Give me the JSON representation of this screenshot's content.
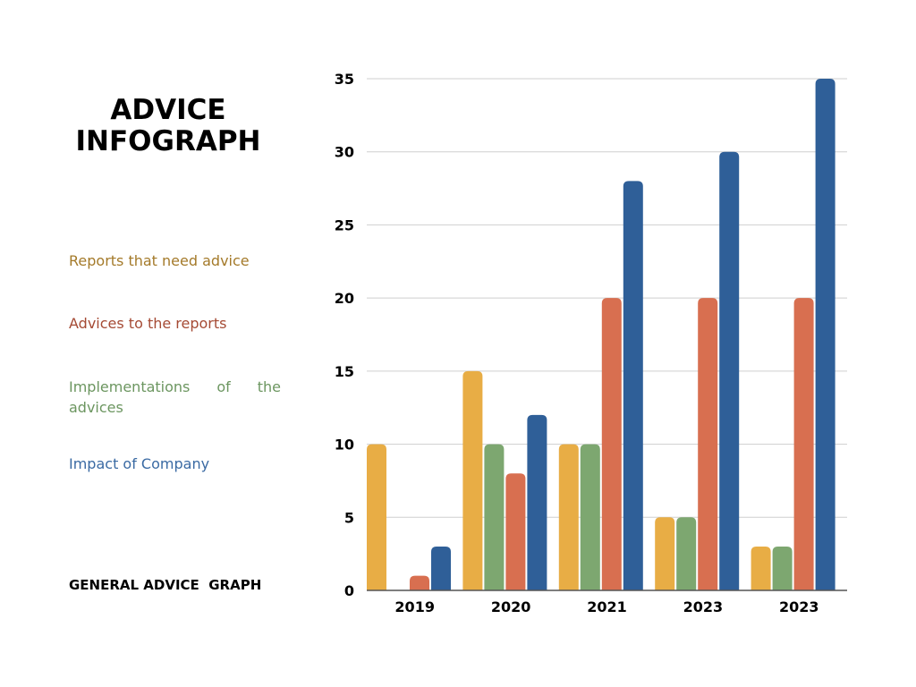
{
  "title": "ADVICE INFOGRAPH",
  "legend": [
    {
      "label": "Reports that need advice",
      "color": "#a47a2a"
    },
    {
      "label": "Advices to the reports",
      "color": "#a54a34"
    },
    {
      "label": "Implementations of the advices",
      "color": "#6c9660"
    },
    {
      "label": "Impact of Company",
      "color": "#3a6aa3"
    }
  ],
  "footer": "GENERAL ADVICE  GRAPH",
  "chart_data": {
    "type": "bar",
    "categories": [
      "2019",
      "2020",
      "2021",
      "2023",
      "2023"
    ],
    "series": [
      {
        "name": "Reports that need advice",
        "color": "#e8ad45",
        "values": [
          10,
          15,
          10,
          5,
          3
        ]
      },
      {
        "name": "Implementations of the advices",
        "color": "#7da770",
        "values": [
          0,
          10,
          10,
          5,
          3
        ]
      },
      {
        "name": "Advices to the reports",
        "color": "#d86f50",
        "values": [
          1,
          8,
          20,
          20,
          20
        ]
      },
      {
        "name": "Impact of Company",
        "color": "#2f5f98",
        "values": [
          3,
          12,
          28,
          30,
          35
        ]
      }
    ],
    "yticks": [
      "0",
      "5",
      "10",
      "15",
      "20",
      "25",
      "30",
      "35"
    ],
    "ylim": [
      0,
      35
    ],
    "grid": true,
    "xlabel": "",
    "ylabel": ""
  }
}
